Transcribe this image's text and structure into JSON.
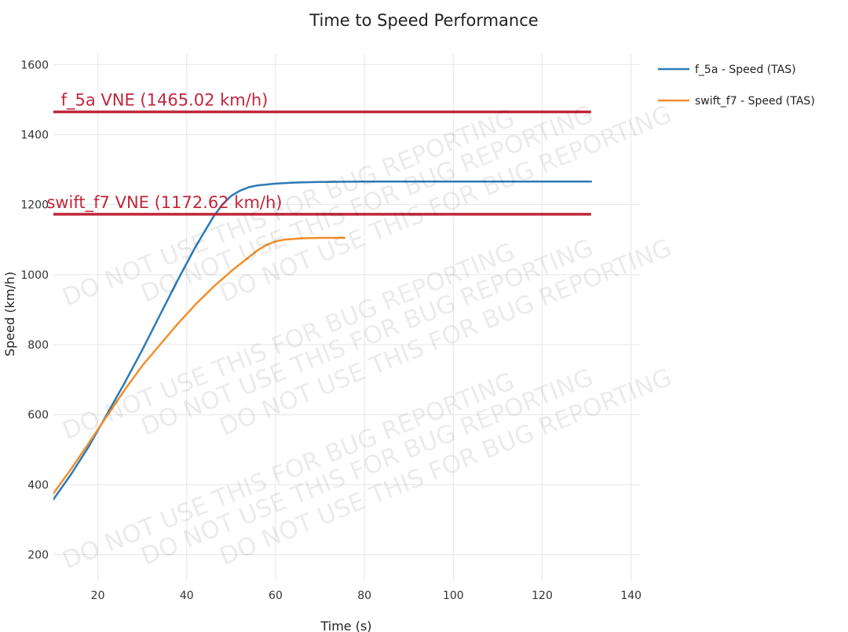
{
  "chart_data": {
    "type": "line",
    "title": "Time to Speed Performance",
    "xlabel": "Time (s)",
    "ylabel": "Speed (km/h)",
    "xlim": [
      10,
      142
    ],
    "ylim": [
      125,
      1650
    ],
    "xticks": [
      20,
      40,
      60,
      80,
      100,
      120,
      140
    ],
    "yticks": [
      200,
      400,
      600,
      800,
      1000,
      1200,
      1400,
      1600
    ],
    "grid": true,
    "legend_position": "top-right",
    "series": [
      {
        "name": "f_5a - Speed (TAS)",
        "color": "#2c7bb6",
        "x": [
          10,
          14,
          18,
          22,
          26,
          30,
          34,
          38,
          42,
          46,
          48,
          50,
          52,
          54,
          56,
          60,
          64,
          70,
          80,
          100,
          120,
          131
        ],
        "y": [
          358,
          430,
          510,
          600,
          690,
          785,
          885,
          985,
          1080,
          1165,
          1200,
          1225,
          1240,
          1250,
          1255,
          1260,
          1263,
          1265,
          1266,
          1266,
          1266,
          1266
        ]
      },
      {
        "name": "swift_f7 - Speed (TAS)",
        "color": "#f28e2b",
        "x": [
          10,
          14,
          18,
          22,
          26,
          30,
          34,
          38,
          42,
          46,
          50,
          54,
          56,
          58,
          60,
          62,
          64,
          66,
          70,
          75.5
        ],
        "y": [
          375,
          445,
          520,
          595,
          670,
          740,
          800,
          860,
          915,
          965,
          1010,
          1050,
          1070,
          1085,
          1095,
          1100,
          1102,
          1104,
          1105,
          1105
        ]
      }
    ],
    "annotations": [
      {
        "label": "f_5a VNE (1465.02 km/h)",
        "y": 1465.02,
        "x_start": 10,
        "x_end": 131,
        "label_x": 35,
        "color": "#c0273b"
      },
      {
        "label": "swift_f7 VNE (1172.62 km/h)",
        "y": 1172.62,
        "x_start": 10,
        "x_end": 131,
        "label_x": 35,
        "color": "#c0273b"
      }
    ],
    "watermark": "DO NOT USE THIS FOR BUG REPORTING"
  }
}
